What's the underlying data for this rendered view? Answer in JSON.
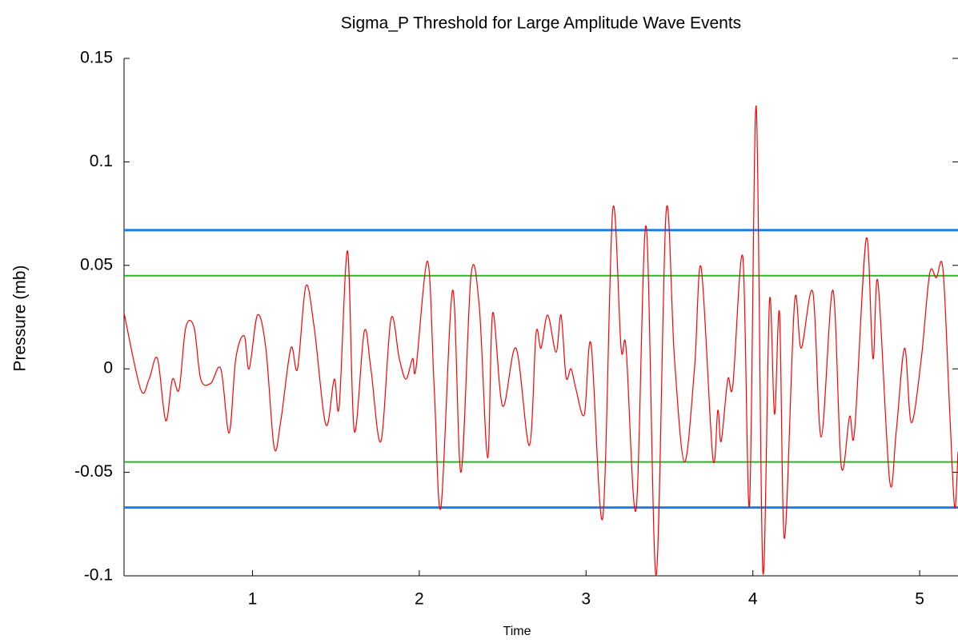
{
  "chart_data": {
    "type": "line",
    "title": "Sigma_P Threshold for Large Amplitude Wave Events",
    "x_label": "Time",
    "y_label": "Pressure (mb)",
    "xlim": [
      0.23,
      5.23
    ],
    "ylim": [
      -0.1,
      0.15
    ],
    "xticks": [
      1,
      2,
      3,
      4,
      5
    ],
    "yticks": [
      0.15,
      0.1,
      0.05,
      0,
      -0.05,
      -0.1
    ],
    "thresholds": [
      {
        "value": 0.067,
        "color": "#1a7fe8"
      },
      {
        "value": -0.067,
        "color": "#1a7fe8"
      },
      {
        "value": 0.045,
        "color": "#22bb22"
      },
      {
        "value": -0.045,
        "color": "#22bb22"
      }
    ],
    "series": [
      {
        "color": "#ff0000",
        "x": [
          0.23,
          0.33,
          0.38,
          0.43,
          0.48,
          0.52,
          0.56,
          0.6,
          0.65,
          0.69,
          0.75,
          0.81,
          0.86,
          0.9,
          0.95,
          0.98,
          1.03,
          1.08,
          1.13,
          1.17,
          1.23,
          1.27,
          1.32,
          1.37,
          1.44,
          1.49,
          1.52,
          1.57,
          1.61,
          1.67,
          1.71,
          1.77,
          1.83,
          1.88,
          1.92,
          1.96,
          1.98,
          2.05,
          2.09,
          2.13,
          2.2,
          2.25,
          2.31,
          2.36,
          2.41,
          2.44,
          2.5,
          2.58,
          2.66,
          2.7,
          2.73,
          2.77,
          2.82,
          2.85,
          2.88,
          2.91,
          2.94,
          2.99,
          3.03,
          3.1,
          3.16,
          3.21,
          3.24,
          3.3,
          3.36,
          3.42,
          3.48,
          3.53,
          3.59,
          3.65,
          3.69,
          3.76,
          3.79,
          3.81,
          3.85,
          3.88,
          3.94,
          3.98,
          4.02,
          4.06,
          4.1,
          4.13,
          4.16,
          4.19,
          4.25,
          4.29,
          4.36,
          4.41,
          4.48,
          4.53,
          4.58,
          4.61,
          4.68,
          4.72,
          4.75,
          4.82,
          4.86,
          4.91,
          4.95,
          5.01,
          5.06,
          5.1,
          5.14,
          5.18,
          5.21,
          5.23
        ],
        "values": [
          0.027,
          -0.01,
          -0.005,
          0.005,
          -0.025,
          -0.005,
          -0.01,
          0.02,
          0.02,
          -0.005,
          -0.007,
          0.0,
          -0.031,
          0.005,
          0.016,
          0.0,
          0.026,
          0.01,
          -0.038,
          -0.025,
          0.01,
          0.0,
          0.04,
          0.02,
          -0.027,
          -0.005,
          -0.018,
          0.057,
          -0.03,
          0.018,
          0.0,
          -0.035,
          0.024,
          0.005,
          -0.005,
          0.005,
          0.0,
          0.052,
          -0.01,
          -0.067,
          0.038,
          -0.05,
          0.045,
          0.03,
          -0.043,
          0.027,
          -0.018,
          0.01,
          -0.037,
          0.017,
          0.01,
          0.026,
          0.008,
          0.026,
          -0.004,
          0.0,
          -0.01,
          -0.022,
          0.012,
          -0.072,
          0.077,
          0.01,
          0.01,
          -0.068,
          0.069,
          -0.1,
          0.076,
          0.005,
          -0.045,
          0.0,
          0.049,
          -0.043,
          -0.02,
          -0.035,
          -0.005,
          -0.008,
          0.054,
          -0.066,
          0.127,
          -0.098,
          0.033,
          -0.022,
          0.027,
          -0.082,
          0.032,
          0.01,
          0.037,
          -0.033,
          0.038,
          -0.047,
          -0.023,
          -0.03,
          0.063,
          0.005,
          0.042,
          -0.054,
          -0.03,
          0.01,
          -0.026,
          0.005,
          0.046,
          0.044,
          0.048,
          -0.02,
          -0.067,
          -0.04
        ]
      }
    ]
  }
}
